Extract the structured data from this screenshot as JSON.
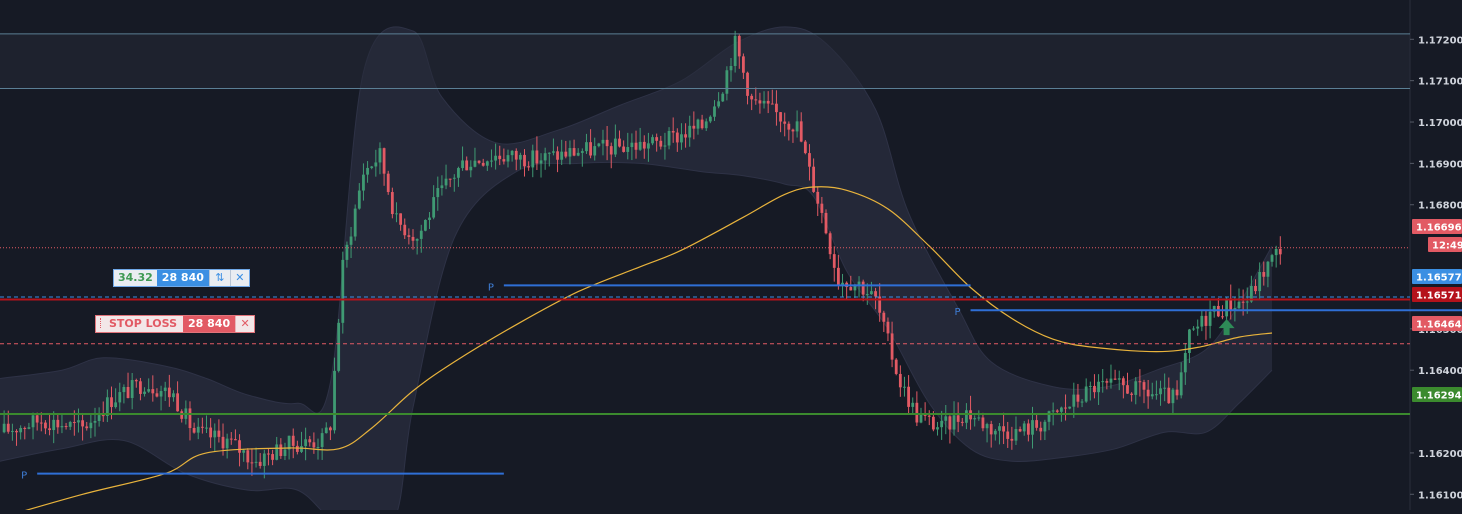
{
  "chart_data": {
    "type": "candlestick",
    "y_axis": {
      "side": "right",
      "ticks": [
        "1.17200",
        "1.17100",
        "1.17000",
        "1.16900",
        "1.16800",
        "1.16500",
        "1.16400",
        "1.16200",
        "1.16100"
      ],
      "ylim": [
        1.1603,
        1.1725
      ]
    },
    "price_tags": [
      {
        "value": "1.16696",
        "color": "#e25a64"
      },
      {
        "value": "12:49",
        "color": "#e25a64"
      },
      {
        "value": "1.16577",
        "color": "#3b8fe3"
      },
      {
        "value": "1.16571",
        "color": "#b5121b"
      },
      {
        "value": "1.16464",
        "color": "#e25a64"
      },
      {
        "value": "1.16294",
        "color": "#3b8a2e"
      }
    ],
    "horizontal_lines": [
      {
        "price": 1.17213,
        "color": "#5b7f95",
        "style": "solid"
      },
      {
        "price": 1.17081,
        "color": "#5b7f95",
        "style": "solid"
      },
      {
        "price": 1.16696,
        "color": "#e25a64",
        "style": "dotted"
      },
      {
        "price": 1.16577,
        "color": "#3b8fe3",
        "style": "dashed"
      },
      {
        "price": 1.16571,
        "color": "#b5121b",
        "style": "solid"
      },
      {
        "price": 1.16464,
        "color": "#e25a64",
        "style": "dashed"
      },
      {
        "price": 1.16294,
        "color": "#3b8a2e",
        "style": "solid"
      }
    ],
    "pivot_levels": [
      {
        "label": "P",
        "price": 1.1615,
        "from_bar": 9,
        "to_bar": 122
      },
      {
        "label": "P",
        "price": 1.16605,
        "from_bar": 122,
        "to_bar": 235
      },
      {
        "label": "P",
        "price": 1.16545,
        "from_bar": 235,
        "to_bar": 360
      },
      {
        "label": "",
        "price": 1.16043,
        "from_bar": 0,
        "to_bar": 9
      }
    ],
    "moving_average": {
      "color": "#e8b33c",
      "points": [
        [
          0,
          1.16043
        ],
        [
          20,
          1.161
        ],
        [
          40,
          1.1615
        ],
        [
          50,
          1.162
        ],
        [
          70,
          1.16212
        ],
        [
          82,
          1.1621
        ],
        [
          90,
          1.1626
        ],
        [
          100,
          1.1635
        ],
        [
          110,
          1.1642
        ],
        [
          125,
          1.1651
        ],
        [
          140,
          1.1659
        ],
        [
          155,
          1.1665
        ],
        [
          165,
          1.1669
        ],
        [
          180,
          1.1677
        ],
        [
          190,
          1.16825
        ],
        [
          197,
          1.16843
        ],
        [
          205,
          1.16835
        ],
        [
          215,
          1.1679
        ],
        [
          225,
          1.167
        ],
        [
          235,
          1.166
        ],
        [
          245,
          1.16525
        ],
        [
          255,
          1.16475
        ],
        [
          265,
          1.16455
        ],
        [
          280,
          1.16445
        ],
        [
          290,
          1.16455
        ],
        [
          300,
          1.1648
        ],
        [
          308,
          1.1649
        ]
      ]
    },
    "bollinger_bands": {
      "upper": [
        [
          0,
          1.1638
        ],
        [
          15,
          1.164
        ],
        [
          25,
          1.1643
        ],
        [
          40,
          1.1641
        ],
        [
          50,
          1.1638
        ],
        [
          60,
          1.1634
        ],
        [
          72,
          1.1632
        ],
        [
          80,
          1.1637
        ],
        [
          88,
          1.1712
        ],
        [
          100,
          1.1722
        ],
        [
          107,
          1.1706
        ],
        [
          120,
          1.1695
        ],
        [
          135,
          1.1698
        ],
        [
          150,
          1.1704
        ],
        [
          165,
          1.171
        ],
        [
          178,
          1.1719
        ],
        [
          190,
          1.1723
        ],
        [
          200,
          1.1719
        ],
        [
          212,
          1.1703
        ],
        [
          220,
          1.1678
        ],
        [
          232,
          1.1655
        ],
        [
          240,
          1.1642
        ],
        [
          255,
          1.1636
        ],
        [
          268,
          1.1636
        ],
        [
          280,
          1.164
        ],
        [
          292,
          1.1645
        ],
        [
          300,
          1.1656
        ],
        [
          308,
          1.167
        ]
      ],
      "lower": [
        [
          0,
          1.1618
        ],
        [
          15,
          1.1621
        ],
        [
          30,
          1.1623
        ],
        [
          45,
          1.1615
        ],
        [
          60,
          1.1611
        ],
        [
          72,
          1.1611
        ],
        [
          82,
          1.1603
        ],
        [
          95,
          1.1603
        ],
        [
          100,
          1.1631
        ],
        [
          110,
          1.1672
        ],
        [
          125,
          1.1688
        ],
        [
          140,
          1.169
        ],
        [
          155,
          1.169
        ],
        [
          170,
          1.1688
        ],
        [
          180,
          1.1687
        ],
        [
          190,
          1.1685
        ],
        [
          197,
          1.1682
        ],
        [
          205,
          1.1664
        ],
        [
          215,
          1.165
        ],
        [
          225,
          1.1632
        ],
        [
          235,
          1.1621
        ],
        [
          245,
          1.1618
        ],
        [
          258,
          1.1619
        ],
        [
          270,
          1.1621
        ],
        [
          282,
          1.1625
        ],
        [
          292,
          1.1625
        ],
        [
          300,
          1.1632
        ],
        [
          308,
          1.164
        ]
      ]
    },
    "candles_close_path": [
      [
        0,
        1.1625
      ],
      [
        10,
        1.1628
      ],
      [
        20,
        1.1626
      ],
      [
        27,
        1.1633
      ],
      [
        35,
        1.1637
      ],
      [
        42,
        1.1634
      ],
      [
        47,
        1.1625
      ],
      [
        55,
        1.1623
      ],
      [
        62,
        1.1618
      ],
      [
        70,
        1.1622
      ],
      [
        78,
        1.1623
      ],
      [
        80,
        1.1627
      ],
      [
        83,
        1.1665
      ],
      [
        88,
        1.1688
      ],
      [
        92,
        1.1692
      ],
      [
        96,
        1.1676
      ],
      [
        101,
        1.1672
      ],
      [
        106,
        1.1682
      ],
      [
        112,
        1.169
      ],
      [
        120,
        1.1692
      ],
      [
        130,
        1.1691
      ],
      [
        140,
        1.1693
      ],
      [
        150,
        1.1694
      ],
      [
        160,
        1.1695
      ],
      [
        170,
        1.1699
      ],
      [
        175,
        1.1709
      ],
      [
        178,
        1.1719
      ],
      [
        182,
        1.1705
      ],
      [
        188,
        1.1702
      ],
      [
        193,
        1.1699
      ],
      [
        196,
        1.1688
      ],
      [
        199,
        1.1678
      ],
      [
        203,
        1.1662
      ],
      [
        208,
        1.1661
      ],
      [
        212,
        1.1657
      ],
      [
        214,
        1.165
      ],
      [
        218,
        1.1637
      ],
      [
        222,
        1.1629
      ],
      [
        228,
        1.1626
      ],
      [
        234,
        1.163
      ],
      [
        240,
        1.1626
      ],
      [
        246,
        1.1625
      ],
      [
        252,
        1.1627
      ],
      [
        258,
        1.1631
      ],
      [
        265,
        1.1636
      ],
      [
        272,
        1.1636
      ],
      [
        280,
        1.1634
      ],
      [
        285,
        1.1633
      ],
      [
        288,
        1.1648
      ],
      [
        293,
        1.1654
      ],
      [
        298,
        1.1656
      ],
      [
        302,
        1.1657
      ],
      [
        306,
        1.1664
      ],
      [
        310,
        1.16696
      ]
    ],
    "trade_markers": [
      {
        "type": "buy-arrow",
        "bar": 297,
        "price": 1.1648,
        "color": "#2e8b57"
      }
    ]
  },
  "position_widget": {
    "pnl": "34.32",
    "quantity": "28 840",
    "reverse_icon": "reverse-arrows-icon",
    "close_icon": "close-icon"
  },
  "stop_loss_widget": {
    "label": "STOP LOSS",
    "quantity": "28 840",
    "close_icon": "close-icon"
  },
  "colors": {
    "background": "#161a25",
    "bull": "#3f9a73",
    "bear": "#e25a64",
    "band_fill": "#2a2d3f",
    "axis_text": "#d0d4dc"
  }
}
